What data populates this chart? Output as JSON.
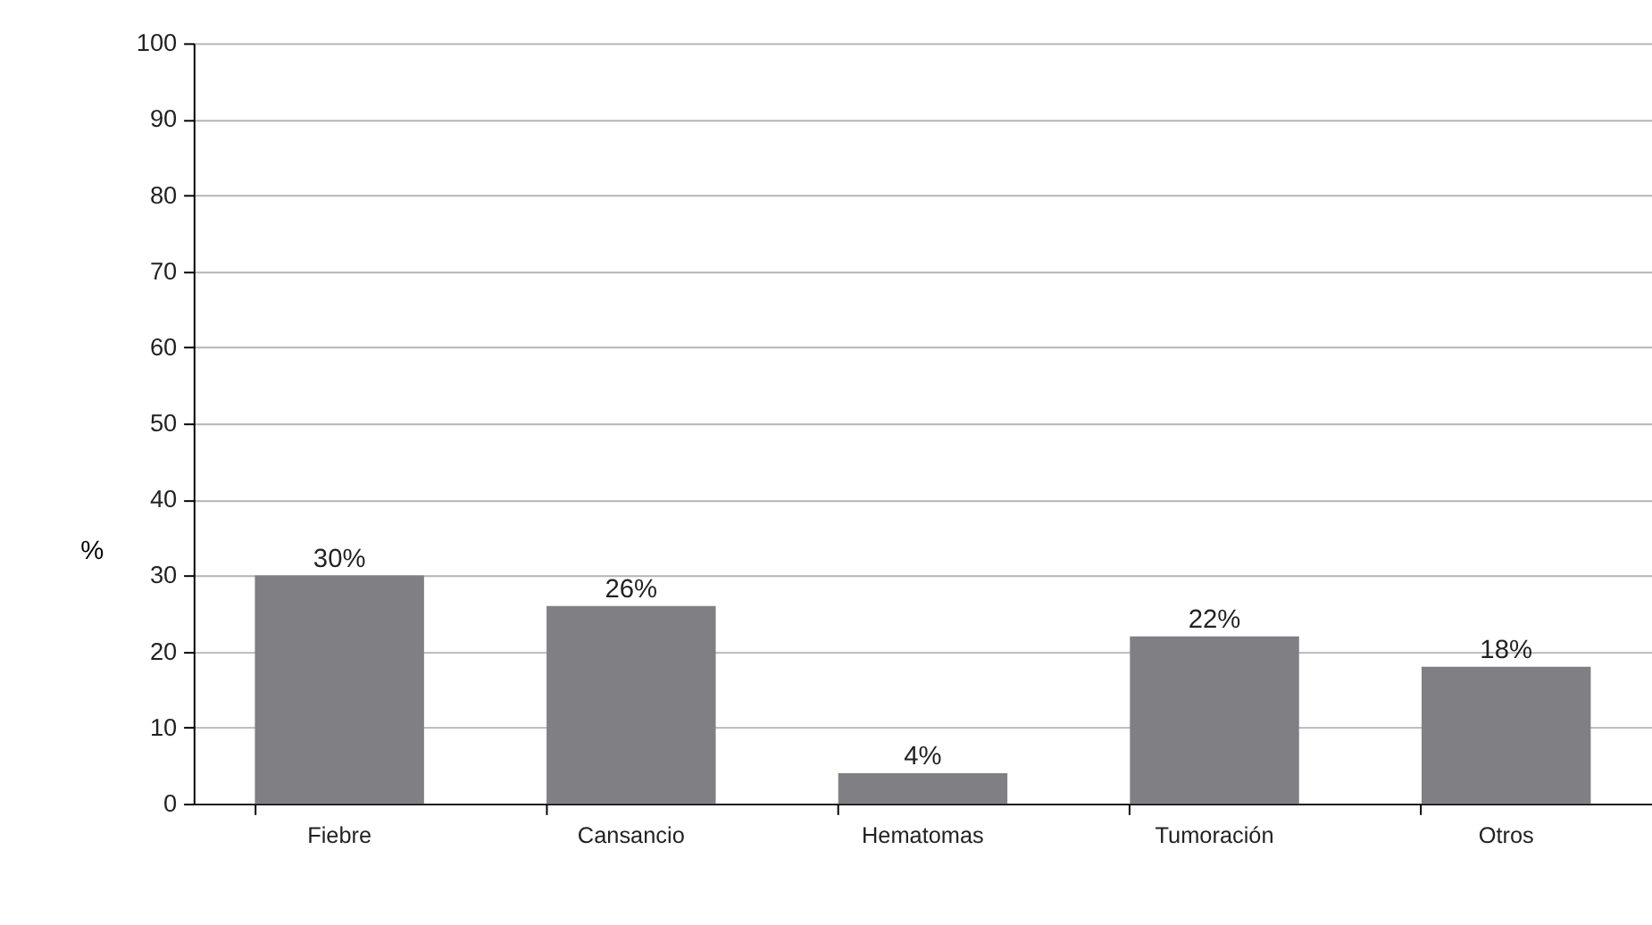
{
  "chart_data": {
    "type": "bar",
    "ylabel": "%",
    "categories": [
      "Fiebre",
      "Cansancio",
      "Hematomas",
      "Tumoración",
      "Otros"
    ],
    "values": [
      30,
      26,
      4,
      22,
      18
    ],
    "value_labels": [
      "30%",
      "26%",
      "4%",
      "22%",
      "18%"
    ],
    "color": "#808084",
    "ylim": [
      0,
      100
    ],
    "yticks": [
      0,
      10,
      20,
      30,
      40,
      50,
      60,
      70,
      80,
      90,
      100
    ],
    "grid": "y"
  }
}
